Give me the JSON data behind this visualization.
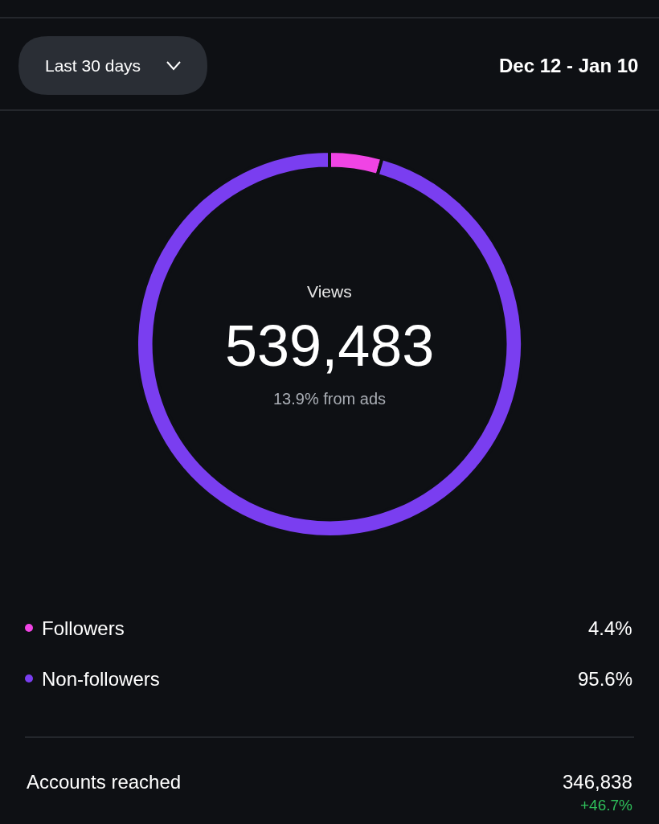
{
  "chart_data": {
    "type": "donut",
    "categories": [
      "Followers",
      "Non-followers"
    ],
    "values": [
      4.4,
      95.6
    ],
    "colors": [
      "#f044e4",
      "#7a3ef0"
    ],
    "value_labels": [
      "4.4%",
      "95.6%"
    ],
    "legend": "bottom",
    "annotations": [
      "Last 30 days",
      "Dec 12 - Jan 10",
      "Views",
      "539,483",
      "13.9% from ads",
      "Accounts reached",
      "346,838",
      "+46.7%"
    ]
  }
}
